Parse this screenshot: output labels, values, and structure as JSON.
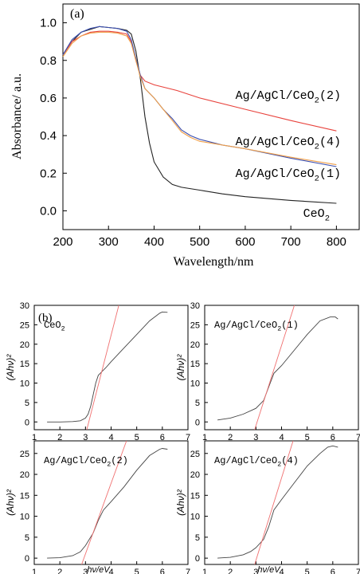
{
  "chart_data": [
    {
      "type": "line",
      "panel_label": "(a)",
      "xlabel": "Wavelength/nm",
      "ylabel": "Absorbance/ a.u.",
      "xlim": [
        200,
        850
      ],
      "ylim": [
        -0.1,
        1.1
      ],
      "xticks": [
        200,
        300,
        400,
        500,
        600,
        700,
        800
      ],
      "yticks": [
        0.0,
        0.2,
        0.4,
        0.6,
        0.8,
        1.0
      ],
      "series": [
        {
          "name": "CeO2",
          "label_main": "CeO",
          "label_sub": "2",
          "label_tail": "",
          "color": "#222222",
          "points": [
            [
              200,
              0.83
            ],
            [
              220,
              0.9
            ],
            [
              240,
              0.95
            ],
            [
              260,
              0.965
            ],
            [
              280,
              0.98
            ],
            [
              300,
              0.975
            ],
            [
              320,
              0.97
            ],
            [
              340,
              0.96
            ],
            [
              350,
              0.94
            ],
            [
              360,
              0.85
            ],
            [
              370,
              0.7
            ],
            [
              380,
              0.5
            ],
            [
              390,
              0.36
            ],
            [
              400,
              0.26
            ],
            [
              420,
              0.18
            ],
            [
              440,
              0.14
            ],
            [
              460,
              0.125
            ],
            [
              500,
              0.11
            ],
            [
              550,
              0.09
            ],
            [
              600,
              0.075
            ],
            [
              700,
              0.055
            ],
            [
              800,
              0.04
            ]
          ]
        },
        {
          "name": "Ag/AgCl/CeO2(2)",
          "label_main": "Ag/AgCl/CeO",
          "label_sub": "2",
          "label_tail": "(2)",
          "color": "#e8423c",
          "points": [
            [
              200,
              0.83
            ],
            [
              220,
              0.9
            ],
            [
              240,
              0.93
            ],
            [
              260,
              0.95
            ],
            [
              280,
              0.955
            ],
            [
              300,
              0.955
            ],
            [
              320,
              0.95
            ],
            [
              340,
              0.94
            ],
            [
              350,
              0.9
            ],
            [
              360,
              0.8
            ],
            [
              370,
              0.72
            ],
            [
              380,
              0.69
            ],
            [
              400,
              0.67
            ],
            [
              450,
              0.64
            ],
            [
              500,
              0.6
            ],
            [
              600,
              0.54
            ],
            [
              700,
              0.48
            ],
            [
              800,
              0.425
            ]
          ]
        },
        {
          "name": "Ag/AgCl/CeO2(4)",
          "label_main": "Ag/AgCl/CeO",
          "label_sub": "2",
          "label_tail": "(4)",
          "color": "#3b4fb0",
          "points": [
            [
              200,
              0.83
            ],
            [
              220,
              0.91
            ],
            [
              240,
              0.95
            ],
            [
              260,
              0.97
            ],
            [
              280,
              0.98
            ],
            [
              300,
              0.975
            ],
            [
              320,
              0.97
            ],
            [
              340,
              0.955
            ],
            [
              350,
              0.91
            ],
            [
              360,
              0.81
            ],
            [
              370,
              0.72
            ],
            [
              380,
              0.65
            ],
            [
              400,
              0.6
            ],
            [
              420,
              0.54
            ],
            [
              440,
              0.49
            ],
            [
              460,
              0.43
            ],
            [
              480,
              0.4
            ],
            [
              500,
              0.38
            ],
            [
              550,
              0.35
            ],
            [
              600,
              0.33
            ],
            [
              700,
              0.28
            ],
            [
              800,
              0.235
            ]
          ]
        },
        {
          "name": "Ag/AgCl/CeO2(1)",
          "label_main": "Ag/AgCl/CeO",
          "label_sub": "2",
          "label_tail": "(1)",
          "color": "#f0a04a",
          "points": [
            [
              200,
              0.82
            ],
            [
              220,
              0.89
            ],
            [
              240,
              0.93
            ],
            [
              260,
              0.945
            ],
            [
              280,
              0.95
            ],
            [
              300,
              0.95
            ],
            [
              320,
              0.945
            ],
            [
              340,
              0.93
            ],
            [
              350,
              0.89
            ],
            [
              360,
              0.8
            ],
            [
              370,
              0.71
            ],
            [
              380,
              0.65
            ],
            [
              400,
              0.6
            ],
            [
              420,
              0.54
            ],
            [
              440,
              0.48
            ],
            [
              460,
              0.42
            ],
            [
              480,
              0.39
            ],
            [
              500,
              0.37
            ],
            [
              550,
              0.35
            ],
            [
              600,
              0.33
            ],
            [
              700,
              0.285
            ],
            [
              800,
              0.245
            ]
          ]
        }
      ]
    },
    {
      "type": "line",
      "panel_label": "(b)",
      "xlabel": "hν/eV",
      "ylabel": "(Ahν)²",
      "subplots": [
        {
          "label_main": "CeO",
          "label_sub": "2",
          "label_tail": "",
          "xlim": [
            1,
            7
          ],
          "ylim": [
            -2,
            30
          ],
          "xticks": [
            1,
            2,
            3,
            4,
            5,
            6,
            7
          ],
          "yticks": [
            0,
            5,
            10,
            15,
            20,
            25,
            30
          ],
          "curve": [
            [
              1.5,
              0
            ],
            [
              2,
              0
            ],
            [
              2.5,
              0.1
            ],
            [
              2.8,
              0.3
            ],
            [
              3.0,
              1
            ],
            [
              3.1,
              2
            ],
            [
              3.2,
              4
            ],
            [
              3.3,
              7
            ],
            [
              3.4,
              10
            ],
            [
              3.5,
              12
            ],
            [
              3.8,
              14
            ],
            [
              4.0,
              15.5
            ],
            [
              4.5,
              19
            ],
            [
              5.0,
              22.5
            ],
            [
              5.5,
              26
            ],
            [
              5.9,
              28
            ],
            [
              6.0,
              28.3
            ],
            [
              6.2,
              28.2
            ]
          ],
          "fit": [
            [
              3.05,
              -2
            ],
            [
              4.3,
              30
            ]
          ]
        },
        {
          "label_main": "Ag/AgCl/CeO",
          "label_sub": "2",
          "label_tail": "(1)",
          "xlim": [
            1,
            7
          ],
          "ylim": [
            -2,
            30
          ],
          "xticks": [
            1,
            2,
            3,
            4,
            5,
            6,
            7
          ],
          "yticks": [
            0,
            5,
            10,
            15,
            20,
            25,
            30
          ],
          "curve": [
            [
              1.5,
              0.5
            ],
            [
              2,
              1
            ],
            [
              2.5,
              2
            ],
            [
              3.0,
              3.5
            ],
            [
              3.3,
              5.5
            ],
            [
              3.5,
              9
            ],
            [
              3.7,
              12.5
            ],
            [
              4.0,
              14.5
            ],
            [
              4.5,
              18.5
            ],
            [
              5.0,
              22.5
            ],
            [
              5.5,
              26
            ],
            [
              5.9,
              27
            ],
            [
              6.1,
              27
            ],
            [
              6.2,
              26.5
            ]
          ],
          "fit": [
            [
              2.95,
              -2
            ],
            [
              4.5,
              30
            ]
          ]
        },
        {
          "label_main": "Ag/AgCl/CeO",
          "label_sub": "2",
          "label_tail": "(2)",
          "xlim": [
            1,
            7
          ],
          "ylim": [
            -1.5,
            28
          ],
          "xticks": [
            1,
            2,
            3,
            4,
            5,
            6,
            7
          ],
          "yticks": [
            0,
            5,
            10,
            15,
            20,
            25
          ],
          "curve": [
            [
              1.5,
              0
            ],
            [
              2,
              0.1
            ],
            [
              2.5,
              0.6
            ],
            [
              2.8,
              1.5
            ],
            [
              3.0,
              3
            ],
            [
              3.3,
              6
            ],
            [
              3.5,
              9
            ],
            [
              3.7,
              11.5
            ],
            [
              4.0,
              13.5
            ],
            [
              4.5,
              17
            ],
            [
              5.0,
              21
            ],
            [
              5.5,
              24.5
            ],
            [
              5.9,
              26
            ],
            [
              6.0,
              26.2
            ],
            [
              6.2,
              26
            ]
          ],
          "fit": [
            [
              2.85,
              -1.5
            ],
            [
              4.6,
              28
            ]
          ]
        },
        {
          "label_main": "Ag/AgCl/CeO",
          "label_sub": "2",
          "label_tail": "(4)",
          "xlim": [
            1,
            7
          ],
          "ylim": [
            -1.5,
            28
          ],
          "xticks": [
            1,
            2,
            3,
            4,
            5,
            6,
            7
          ],
          "yticks": [
            0,
            5,
            10,
            15,
            20,
            25
          ],
          "curve": [
            [
              1.5,
              0
            ],
            [
              2,
              0.2
            ],
            [
              2.5,
              0.8
            ],
            [
              2.8,
              1.6
            ],
            [
              3.0,
              2.5
            ],
            [
              3.3,
              4.5
            ],
            [
              3.5,
              7.5
            ],
            [
              3.7,
              11.5
            ],
            [
              4.0,
              14
            ],
            [
              4.5,
              18
            ],
            [
              5.0,
              22
            ],
            [
              5.5,
              25
            ],
            [
              5.8,
              26.5
            ],
            [
              6.0,
              26.8
            ],
            [
              6.2,
              26.5
            ]
          ],
          "fit": [
            [
              2.95,
              -1.5
            ],
            [
              4.45,
              28
            ]
          ]
        }
      ]
    }
  ]
}
